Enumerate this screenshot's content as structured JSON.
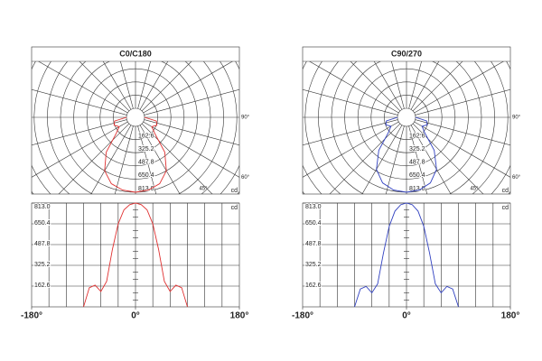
{
  "chart_data": [
    {
      "type": "photometric",
      "title": "C0/C180",
      "color": "#e03030",
      "unit": "cd",
      "x": [
        -90,
        -80,
        -70,
        -60,
        -50,
        -40,
        -30,
        -20,
        -10,
        0,
        10,
        20,
        30,
        40,
        50,
        60,
        70,
        80,
        90
      ],
      "values": [
        0,
        150,
        170,
        120,
        200,
        450,
        650,
        760,
        800,
        813,
        800,
        760,
        650,
        450,
        200,
        120,
        170,
        150,
        0
      ],
      "ylim": [
        0,
        813
      ],
      "yticks": [
        162.6,
        325.2,
        487.8,
        650.4,
        {
          "value": 813,
          "label": "813.0"
        }
      ],
      "angle_ticks": [
        {
          "value": 90,
          "label": "90°"
        },
        {
          "value": 60,
          "label": "60°"
        },
        {
          "value": 45,
          "label": "45°"
        }
      ],
      "xlim": [
        -180,
        180
      ],
      "xticks": [
        {
          "value": -180,
          "label": "-180°"
        },
        {
          "value": 0,
          "label": "0°"
        },
        {
          "value": 180,
          "label": "180°"
        }
      ]
    },
    {
      "type": "photometric",
      "title": "C90/270",
      "color": "#3040c0",
      "unit": "cd",
      "x": [
        -90,
        -80,
        -70,
        -60,
        -50,
        -40,
        -30,
        -20,
        -10,
        0,
        10,
        20,
        30,
        40,
        50,
        60,
        70,
        80,
        90
      ],
      "values": [
        0,
        140,
        160,
        110,
        180,
        420,
        630,
        750,
        800,
        813,
        800,
        750,
        630,
        420,
        180,
        110,
        160,
        140,
        0
      ],
      "ylim": [
        0,
        813
      ],
      "yticks": [
        162.6,
        325.2,
        487.8,
        650.4,
        {
          "value": 813,
          "label": "813.0"
        }
      ],
      "angle_ticks": [
        {
          "value": 90,
          "label": "90°"
        },
        {
          "value": 60,
          "label": "60°"
        },
        {
          "value": 45,
          "label": "45°"
        }
      ],
      "xlim": [
        -180,
        180
      ],
      "xticks": [
        {
          "value": -180,
          "label": "-180°"
        },
        {
          "value": 0,
          "label": "0°"
        },
        {
          "value": 180,
          "label": "180°"
        }
      ]
    }
  ]
}
